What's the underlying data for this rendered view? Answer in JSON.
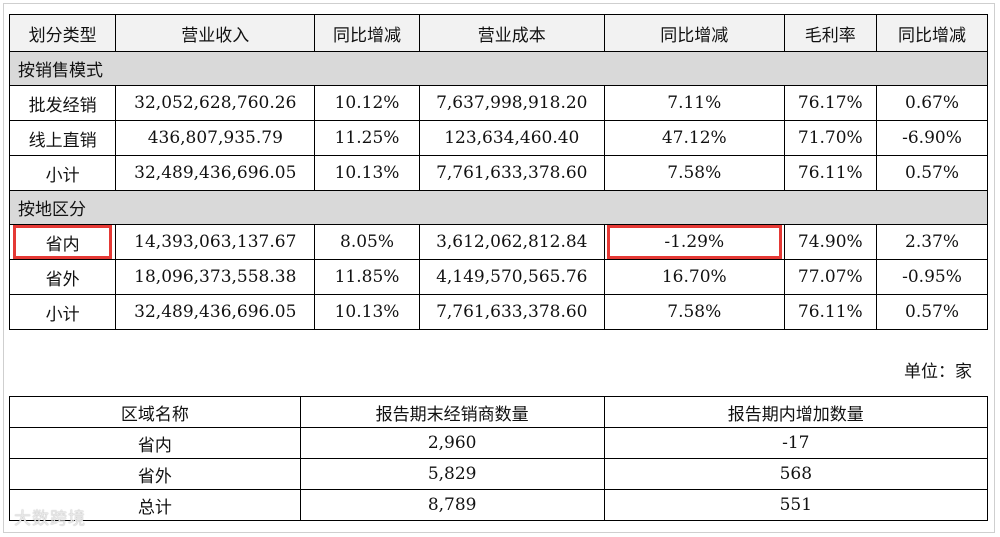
{
  "table1": {
    "headers": [
      "划分类型",
      "营业收入",
      "同比增减",
      "营业成本",
      "同比增减",
      "毛利率",
      "同比增减"
    ],
    "section_by_mode": "按销售模式",
    "by_mode_rows": [
      [
        "批发经销",
        "32,052,628,760.26",
        "10.12%",
        "7,637,998,918.20",
        "7.11%",
        "76.17%",
        "0.67%"
      ],
      [
        "线上直销",
        "436,807,935.79",
        "11.25%",
        "123,634,460.40",
        "47.12%",
        "71.70%",
        "-6.90%"
      ],
      [
        "小计",
        "32,489,436,696.05",
        "10.13%",
        "7,761,633,378.60",
        "7.58%",
        "76.11%",
        "0.57%"
      ]
    ],
    "section_by_region": "按地区分",
    "by_region_rows": [
      [
        "省内",
        "14,393,063,137.67",
        "8.05%",
        "3,612,062,812.84",
        "-1.29%",
        "74.90%",
        "2.37%"
      ],
      [
        "省外",
        "18,096,373,558.38",
        "11.85%",
        "4,149,570,565.76",
        "16.70%",
        "77.07%",
        "-0.95%"
      ],
      [
        "小计",
        "32,489,436,696.05",
        "10.13%",
        "7,761,633,378.60",
        "7.58%",
        "76.11%",
        "0.57%"
      ]
    ],
    "highlight_color": "#e53935"
  },
  "unit_label": "单位：家",
  "table2": {
    "headers": [
      "区域名称",
      "报告期末经销商数量",
      "报告期内增加数量"
    ],
    "rows": [
      [
        "省内",
        "2,960",
        "-17"
      ],
      [
        "省外",
        "5,829",
        "568"
      ],
      [
        "总计",
        "8,789",
        "551"
      ]
    ]
  },
  "watermark": "大数跨境"
}
